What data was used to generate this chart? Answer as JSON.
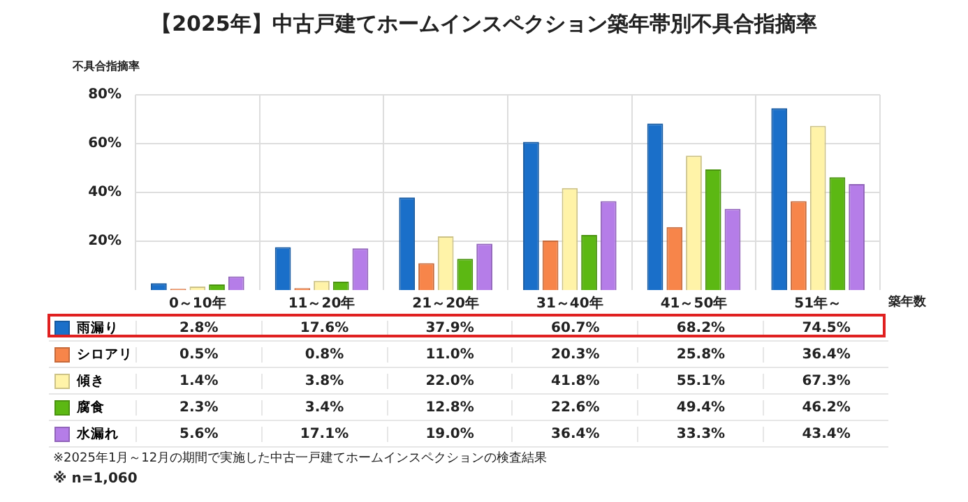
{
  "chart_data": {
    "type": "bar",
    "title": "【2025年】中古戸建てホームインスペクション築年帯別不具合指摘率",
    "ylabel": "不具合指摘率",
    "xlabel": "築年数",
    "categories": [
      "0～10年",
      "11～20年",
      "21～20年",
      "31～40年",
      "41～50年",
      "51年～"
    ],
    "series": [
      {
        "name": "雨漏り",
        "color": "#1a6fc9",
        "values": [
          2.8,
          17.6,
          37.9,
          60.7,
          68.2,
          74.5
        ],
        "value_labels": [
          "2.8%",
          "17.6%",
          "37.9%",
          "60.7%",
          "68.2%",
          "74.5%"
        ]
      },
      {
        "name": "シロアリ",
        "color": "#f7854a",
        "values": [
          0.5,
          0.8,
          11.0,
          20.3,
          25.8,
          36.4
        ],
        "value_labels": [
          "0.5%",
          "0.8%",
          "11.0%",
          "20.3%",
          "25.8%",
          "36.4%"
        ]
      },
      {
        "name": "傾き",
        "color": "#fff3a8",
        "values": [
          1.4,
          3.8,
          22.0,
          41.8,
          55.1,
          67.3
        ],
        "value_labels": [
          "1.4%",
          "3.8%",
          "22.0%",
          "41.8%",
          "55.1%",
          "67.3%"
        ]
      },
      {
        "name": "腐食",
        "color": "#5cb813",
        "values": [
          2.3,
          3.4,
          12.8,
          22.6,
          49.4,
          46.2
        ],
        "value_labels": [
          "2.3%",
          "3.4%",
          "12.8%",
          "22.6%",
          "49.4%",
          "46.2%"
        ]
      },
      {
        "name": "水漏れ",
        "color": "#b57de8",
        "values": [
          5.6,
          17.1,
          19.0,
          36.4,
          33.3,
          43.4
        ],
        "value_labels": [
          "5.6%",
          "17.1%",
          "19.0%",
          "36.4%",
          "33.3%",
          "43.4%"
        ]
      }
    ],
    "ylim": [
      0,
      80
    ],
    "yticks": [
      {
        "value": 20,
        "label": "20%"
      },
      {
        "value": 40,
        "label": "40%"
      },
      {
        "value": 60,
        "label": "60%"
      },
      {
        "value": 80,
        "label": "80%"
      }
    ],
    "grid": true,
    "legend": "bottom",
    "annotations": [
      "※2025年1月～12月の期間で実施した中古一戸建てホームインスペクションの検査結果",
      "※ n=1,060"
    ]
  }
}
